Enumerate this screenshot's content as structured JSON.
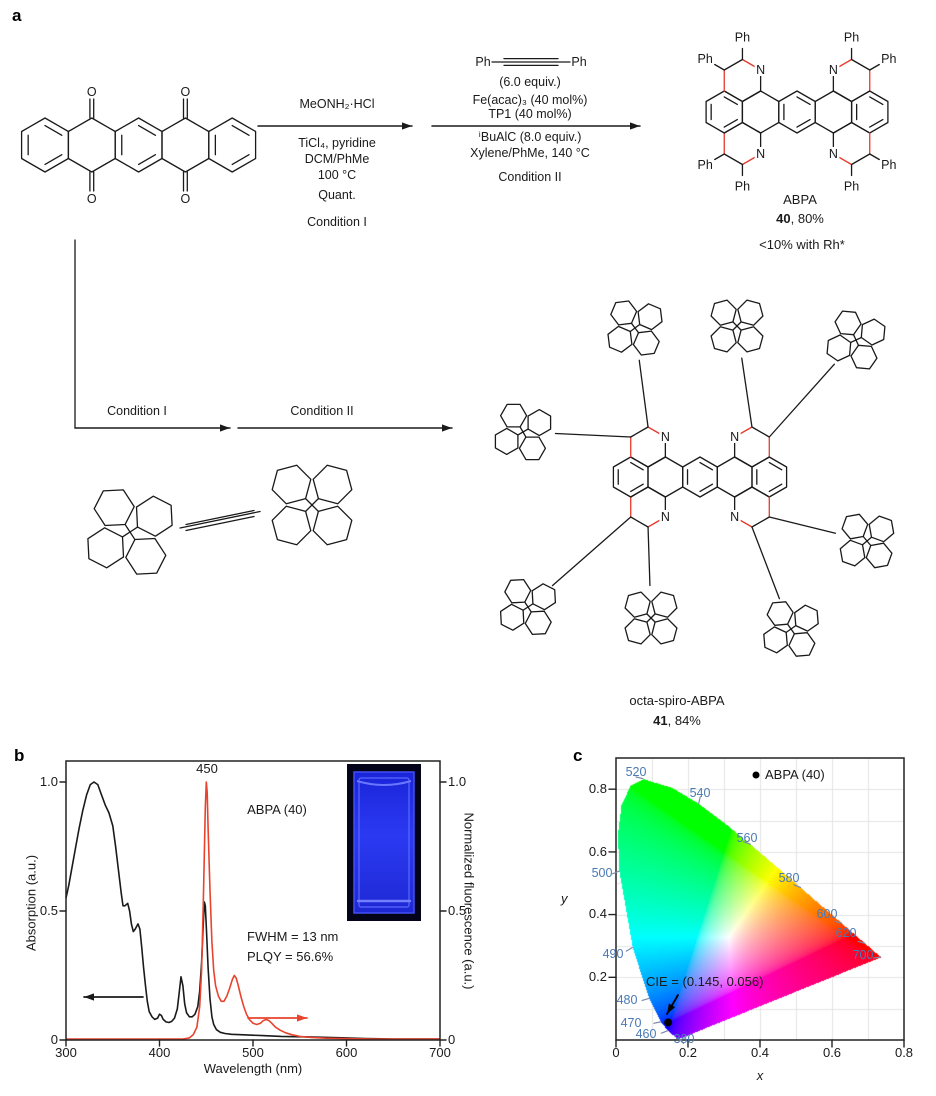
{
  "figure": {
    "panels": [
      {
        "label": "a"
      },
      {
        "label": "b"
      },
      {
        "label": "c"
      }
    ]
  },
  "colors": {
    "structure_black": "#1a1a1a",
    "accent_red": "#e8392b",
    "curve_red": "#e8432d",
    "wavelength_blue": "#4a7ab5",
    "grid_gray": "#e3e3e3",
    "cuvette_glow": "#2433ea"
  },
  "panel_a": {
    "atom_labels": {
      "oxygen": "O",
      "nitrogen": "N",
      "phenyl": "Ph"
    },
    "reaction_1": {
      "reagent_above": "MeONH₂·HCl",
      "conditions_below": [
        "TiCl₄, pyridine",
        "DCM/PhMe",
        "100 °C"
      ],
      "yield": "Quant.",
      "condition_label": "Condition I"
    },
    "reaction_2": {
      "alkyne_left": "Ph",
      "alkyne_right": "Ph",
      "alkyne_equiv": "(6.0 equiv.)",
      "reagents": [
        "Fe(acac)₃ (40 mol%)",
        "TP1 (40 mol%)"
      ],
      "conditions_below": [
        "ⁱBuAlC (8.0 equiv.)",
        "Xylene/PhMe, 140 °C"
      ],
      "condition_label": "Condition II"
    },
    "bottom_path": {
      "step1": "Condition I",
      "step2": "Condition II"
    },
    "product_abpa": {
      "name": "ABPA",
      "number": "40",
      "yield": ", 80%",
      "note": "<10% with Rh*"
    },
    "product_octaspiro": {
      "name": "octa-spiro-ABPA",
      "number": "41",
      "yield": ", 84%"
    }
  },
  "panel_b": {
    "ylabel_left": "Absorption (a.u.)",
    "ylabel_right": "Normalized fluorescence (a.u.)",
    "xlabel": "Wavelength (nm)",
    "yticks_left": [
      "1.0",
      "0.5",
      "0"
    ],
    "yticks_right": [
      "1.0",
      "0.5",
      "0"
    ],
    "xticks": [
      "300",
      "400",
      "500",
      "600",
      "700"
    ],
    "peak_label": "450",
    "compound_label": "ABPA (40)",
    "fwhm": "FWHM = 13 nm",
    "plqy": "PLQY = 56.6%"
  },
  "panel_c": {
    "xlabel": "x",
    "ylabel": "y",
    "xticks": [
      "0",
      "0.2",
      "0.4",
      "0.6",
      "0.8"
    ],
    "yticks": [
      "0.8",
      "0.6",
      "0.4",
      "0.2"
    ],
    "legend_label": "ABPA (40)",
    "annotation": "CIE = (0.145, 0.056)",
    "wavelength_labels": [
      "520",
      "540",
      "560",
      "580",
      "600",
      "620",
      "700",
      "500",
      "490",
      "480",
      "470",
      "460",
      "380"
    ]
  },
  "chart_data": [
    {
      "id": "uv_vis_and_fluorescence_spectra",
      "type": "line",
      "xlabel": "Wavelength (nm)",
      "ylabel_left": "Absorption (a.u.)",
      "ylabel_right": "Normalized fluorescence (a.u.)",
      "xlim": [
        300,
        700
      ],
      "ylim": [
        0,
        1.08
      ],
      "xticks": [
        300,
        400,
        500,
        600,
        700
      ],
      "yticks": [
        0,
        0.5,
        1.0
      ],
      "peak_annotation": "450",
      "compound": "ABPA (40)",
      "fwhm": "FWHM = 13 nm",
      "plqy": "PLQY = 56.6%",
      "series": [
        {
          "name": "absorption",
          "axis": "left",
          "color": "#1a1a1a",
          "points": [
            [
              300,
              0.55
            ],
            [
              303,
              0.6
            ],
            [
              306,
              0.66
            ],
            [
              310,
              0.74
            ],
            [
              314,
              0.82
            ],
            [
              318,
              0.89
            ],
            [
              322,
              0.95
            ],
            [
              326,
              0.99
            ],
            [
              330,
              1.0
            ],
            [
              334,
              0.99
            ],
            [
              338,
              0.95
            ],
            [
              342,
              0.91
            ],
            [
              346,
              0.88
            ],
            [
              350,
              0.83
            ],
            [
              353,
              0.75
            ],
            [
              356,
              0.66
            ],
            [
              359,
              0.57
            ],
            [
              361,
              0.52
            ],
            [
              363,
              0.52
            ],
            [
              366,
              0.53
            ],
            [
              368,
              0.5
            ],
            [
              370,
              0.45
            ],
            [
              372,
              0.42
            ],
            [
              374,
              0.43
            ],
            [
              377,
              0.45
            ],
            [
              379,
              0.43
            ],
            [
              381,
              0.36
            ],
            [
              383,
              0.28
            ],
            [
              385,
              0.21
            ],
            [
              387,
              0.15
            ],
            [
              389,
              0.11
            ],
            [
              392,
              0.09
            ],
            [
              395,
              0.08
            ],
            [
              398,
              0.085
            ],
            [
              400,
              0.1
            ],
            [
              402,
              0.095
            ],
            [
              404,
              0.08
            ],
            [
              407,
              0.07
            ],
            [
              410,
              0.068
            ],
            [
              413,
              0.072
            ],
            [
              416,
              0.085
            ],
            [
              419,
              0.12
            ],
            [
              421,
              0.18
            ],
            [
              423,
              0.245
            ],
            [
              425,
              0.21
            ],
            [
              427,
              0.14
            ],
            [
              429,
              0.105
            ],
            [
              432,
              0.09
            ],
            [
              435,
              0.09
            ],
            [
              438,
              0.1
            ],
            [
              441,
              0.13
            ],
            [
              443,
              0.19
            ],
            [
              445,
              0.3
            ],
            [
              447,
              0.46
            ],
            [
              448,
              0.535
            ],
            [
              449,
              0.52
            ],
            [
              450,
              0.44
            ],
            [
              452,
              0.28
            ],
            [
              454,
              0.16
            ],
            [
              456,
              0.09
            ],
            [
              458,
              0.06
            ],
            [
              461,
              0.04
            ],
            [
              465,
              0.03
            ],
            [
              470,
              0.025
            ],
            [
              477,
              0.022
            ],
            [
              490,
              0.02
            ],
            [
              510,
              0.017
            ],
            [
              530,
              0.014
            ],
            [
              560,
              0.012
            ],
            [
              590,
              0.009
            ],
            [
              620,
              0.006
            ],
            [
              650,
              0.004
            ],
            [
              675,
              0.002
            ],
            [
              700,
              0.001
            ]
          ]
        },
        {
          "name": "fluorescence",
          "axis": "right",
          "color": "#e8432d",
          "points": [
            [
              300,
              0.001
            ],
            [
              410,
              0.001
            ],
            [
              425,
              0.003
            ],
            [
              432,
              0.008
            ],
            [
              436,
              0.02
            ],
            [
              440,
              0.05
            ],
            [
              443,
              0.13
            ],
            [
              445,
              0.27
            ],
            [
              447,
              0.55
            ],
            [
              449,
              0.9
            ],
            [
              450,
              1.0
            ],
            [
              451,
              0.96
            ],
            [
              452,
              0.82
            ],
            [
              454,
              0.58
            ],
            [
              456,
              0.38
            ],
            [
              458,
              0.27
            ],
            [
              460,
              0.21
            ],
            [
              463,
              0.17
            ],
            [
              466,
              0.15
            ],
            [
              469,
              0.15
            ],
            [
              472,
              0.17
            ],
            [
              475,
              0.2
            ],
            [
              478,
              0.235
            ],
            [
              480,
              0.25
            ],
            [
              482,
              0.24
            ],
            [
              484,
              0.215
            ],
            [
              487,
              0.17
            ],
            [
              490,
              0.13
            ],
            [
              493,
              0.1
            ],
            [
              496,
              0.08
            ],
            [
              500,
              0.065
            ],
            [
              504,
              0.06
            ],
            [
              508,
              0.065
            ],
            [
              511,
              0.075
            ],
            [
              514,
              0.08
            ],
            [
              517,
              0.075
            ],
            [
              520,
              0.065
            ],
            [
              524,
              0.05
            ],
            [
              529,
              0.038
            ],
            [
              535,
              0.028
            ],
            [
              542,
              0.02
            ],
            [
              550,
              0.014
            ],
            [
              562,
              0.01
            ],
            [
              578,
              0.007
            ],
            [
              600,
              0.005
            ],
            [
              630,
              0.003
            ],
            [
              665,
              0.002
            ],
            [
              700,
              0.001
            ]
          ]
        }
      ]
    },
    {
      "id": "cie_1931_chromaticity",
      "type": "scatter",
      "xlabel": "x",
      "ylabel": "y",
      "xlim": [
        0,
        0.8
      ],
      "ylim": [
        0,
        0.9
      ],
      "xticks": [
        0,
        0.2,
        0.4,
        0.6,
        0.8
      ],
      "yticks": [
        0.2,
        0.4,
        0.6,
        0.8
      ],
      "grid": true,
      "legend": [
        {
          "label": "ABPA (40)",
          "marker": "dot",
          "color": "#000000"
        }
      ],
      "points": [
        {
          "label": "ABPA (40)",
          "x": 0.145,
          "y": 0.056
        }
      ],
      "annotation": "CIE = (0.145, 0.056)",
      "spectral_locus_labels_nm": [
        380,
        460,
        470,
        480,
        490,
        500,
        520,
        540,
        560,
        580,
        600,
        620,
        700
      ]
    }
  ]
}
